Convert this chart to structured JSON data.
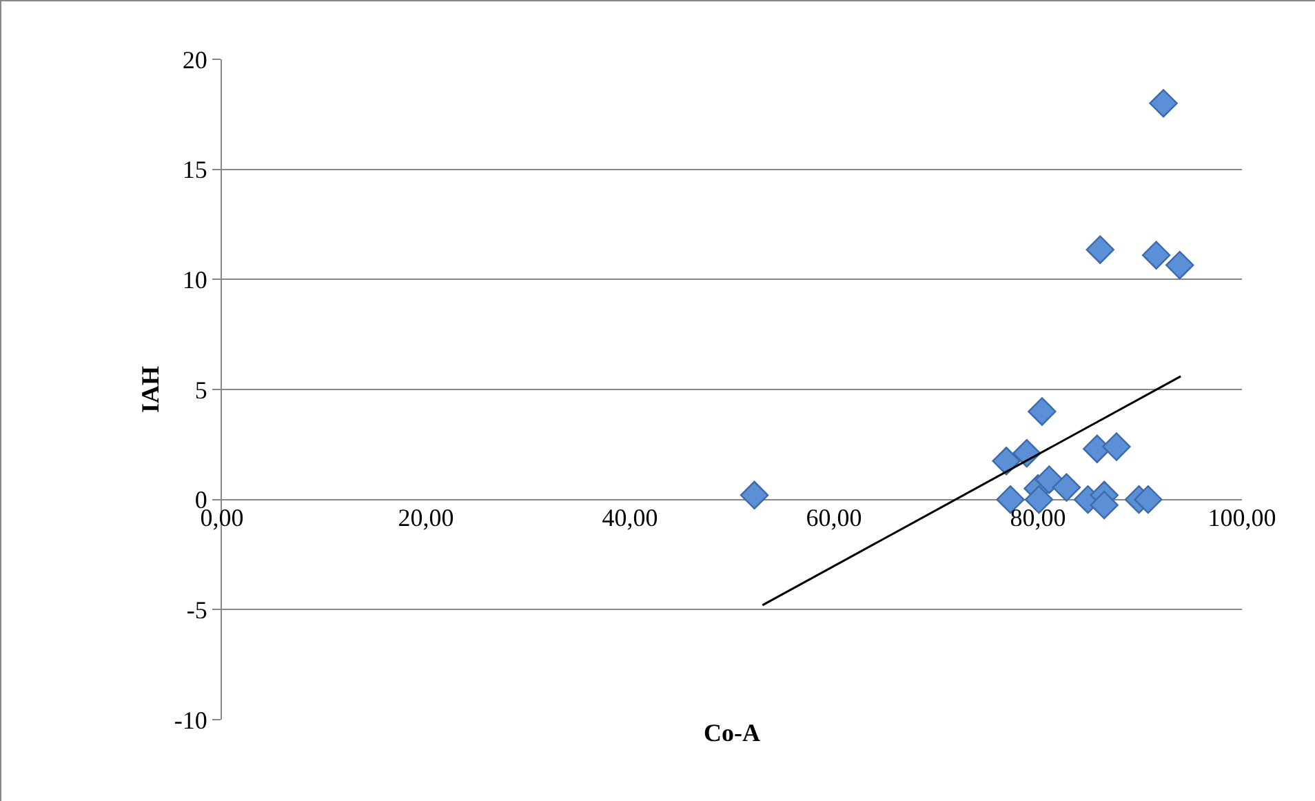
{
  "chart_data": {
    "type": "scatter",
    "xlabel": "Co-A",
    "ylabel": "IAH",
    "xlim": [
      0,
      100
    ],
    "xticks": [
      {
        "value": 0,
        "label": "0,00"
      },
      {
        "value": 20,
        "label": "20,00"
      },
      {
        "value": 40,
        "label": "40,00"
      },
      {
        "value": 60,
        "label": "60,00"
      },
      {
        "value": 80,
        "label": "80,00"
      },
      {
        "value": 100,
        "label": "100,00"
      }
    ],
    "ylim": [
      -10,
      20
    ],
    "yticks": [
      -10,
      -5,
      0,
      5,
      10,
      15,
      20
    ],
    "grid": "y",
    "marker": "diamond",
    "series": [
      {
        "type": "scatter",
        "color": "#5b8fd6",
        "x": [
          52.2,
          92.3,
          86.1,
          91.6,
          93.9,
          80.4,
          76.9,
          78.9,
          85.8,
          87.7,
          77.3,
          80,
          81.1,
          80.1,
          82.8,
          84.9,
          86.5,
          86.5,
          89.9,
          90.8
        ],
        "values": [
          0.2,
          18,
          11.35,
          11.1,
          10.65,
          4,
          1.75,
          2.1,
          2.3,
          2.4,
          0,
          0.5,
          0.9,
          0,
          0.55,
          0,
          0.2,
          -0.25,
          0,
          0
        ]
      },
      {
        "type": "line",
        "color": "#000000",
        "marker": "none",
        "x": [
          53,
          94
        ],
        "values": [
          -4.8,
          5.6
        ]
      }
    ]
  }
}
